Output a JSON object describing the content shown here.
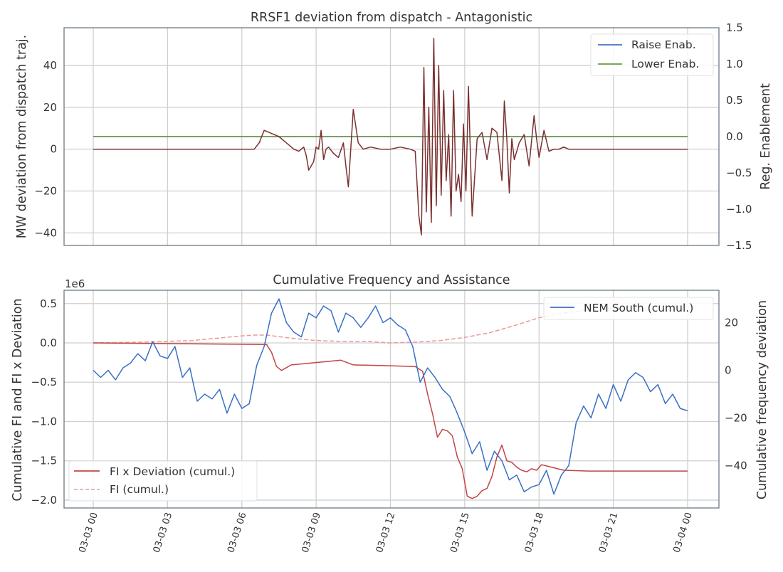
{
  "chart_data": [
    {
      "type": "line",
      "title": "RRSF1 deviation from dispatch - Antagonistic",
      "ylabel": "MW deviation from dispatch traj.",
      "y2label": "Reg. Enablement",
      "ylim": [
        -46,
        58
      ],
      "yticks": [
        40,
        20,
        0,
        -20,
        -40
      ],
      "ytick_labels": [
        "40",
        "20",
        "0",
        "−20",
        "−40"
      ],
      "y2lim": [
        -1.5,
        1.5
      ],
      "y2ticks": [
        1.5,
        1.0,
        0.5,
        0.0,
        -0.5,
        -1.0,
        -1.5
      ],
      "y2tick_labels": [
        "1.5",
        "1.0",
        "0.5",
        "0.0",
        "−0.5",
        "−1.0",
        "−1.5"
      ],
      "x_range_hours": [
        0,
        24
      ],
      "grid": true,
      "legend": {
        "position": "top-right",
        "entries": [
          "Raise Enab.",
          "Lower Enab."
        ]
      },
      "series": [
        {
          "name": "Raise Enab.",
          "axis": "right",
          "color": "#4472c4",
          "x": [
            0,
            24
          ],
          "y": [
            0,
            0
          ]
        },
        {
          "name": "Lower Enab.",
          "axis": "right",
          "color": "#6a9a3e",
          "x": [
            0,
            24
          ],
          "y": [
            0,
            0
          ]
        },
        {
          "name": "MW deviation",
          "axis": "left",
          "color": "#7b3030",
          "x": [
            0,
            6.5,
            6.7,
            6.9,
            7.1,
            7.3,
            7.5,
            7.7,
            7.9,
            8.1,
            8.3,
            8.5,
            8.6,
            8.7,
            8.9,
            9.0,
            9.1,
            9.2,
            9.3,
            9.4,
            9.5,
            9.7,
            9.9,
            10.1,
            10.2,
            10.3,
            10.5,
            10.7,
            10.9,
            11.2,
            11.6,
            12.0,
            12.4,
            12.8,
            13.0,
            13.15,
            13.25,
            13.35,
            13.45,
            13.55,
            13.65,
            13.75,
            13.85,
            13.95,
            14.05,
            14.15,
            14.25,
            14.35,
            14.45,
            14.55,
            14.65,
            14.75,
            14.85,
            14.95,
            15.05,
            15.15,
            15.3,
            15.5,
            15.7,
            15.9,
            16.1,
            16.3,
            16.5,
            16.6,
            16.7,
            16.8,
            16.9,
            17.0,
            17.2,
            17.4,
            17.6,
            17.8,
            17.9,
            18.0,
            18.2,
            18.4,
            18.6,
            18.8,
            19.0,
            19.2,
            20,
            22,
            24
          ],
          "y": [
            0,
            0,
            3,
            9,
            8,
            7,
            6,
            4,
            2,
            0,
            -1,
            1,
            -3,
            -10,
            -6,
            1,
            0,
            9,
            -5,
            0,
            1,
            -2,
            -4,
            3,
            -8,
            -18,
            19,
            3,
            0,
            1,
            0,
            0,
            1,
            0,
            -1,
            -32,
            -41,
            39,
            -30,
            20,
            -35,
            53,
            -27,
            40,
            -22,
            28,
            -15,
            7,
            -32,
            28,
            -20,
            -12,
            -25,
            12,
            -20,
            30,
            -32,
            5,
            8,
            -5,
            10,
            8,
            -15,
            23,
            5,
            -21,
            5,
            -5,
            3,
            7,
            -8,
            16,
            5,
            -4,
            9,
            -1,
            0,
            0,
            1,
            0,
            0,
            0,
            0
          ]
        }
      ]
    },
    {
      "type": "line",
      "title": "Cumulative Frequency and Assistance",
      "ylabel": "Cumulative FI and FI x Deviation",
      "y2label": "Cumulative frequency deviation",
      "offset_text": "1e6",
      "ylim": [
        -2.1,
        0.67
      ],
      "yticks": [
        0.5,
        0.0,
        -0.5,
        -1.0,
        -1.5,
        -2.0
      ],
      "ytick_labels": [
        "0.5",
        "0.0",
        "−0.5",
        "−1.0",
        "−1.5",
        "−2.0"
      ],
      "y2lim": [
        -57.8,
        33.6
      ],
      "y2ticks": [
        20,
        0,
        -20,
        -40
      ],
      "y2tick_labels": [
        "20",
        "0",
        "−20",
        "−40"
      ],
      "x_tick_labels": [
        "03-03 00",
        "03-03 03",
        "03-03 06",
        "03-03 09",
        "03-03 12",
        "03-03 15",
        "03-03 18",
        "03-03 21",
        "03-04 00"
      ],
      "x_ticks_hours": [
        0,
        3,
        6,
        9,
        12,
        15,
        18,
        21,
        24
      ],
      "grid": true,
      "legends": [
        {
          "position": "top-right",
          "entries": [
            "NEM South (cumul.)"
          ]
        },
        {
          "position": "lower-left",
          "entries": [
            "FI x Deviation (cumul.)",
            "FI (cumul.)"
          ]
        }
      ],
      "series": [
        {
          "name": "NEM South (cumul.)",
          "axis": "right",
          "color": "#3a6fc4",
          "x": [
            0,
            0.3,
            0.6,
            0.9,
            1.2,
            1.5,
            1.8,
            2.1,
            2.4,
            2.7,
            3.0,
            3.3,
            3.6,
            3.9,
            4.2,
            4.5,
            4.8,
            5.1,
            5.4,
            5.7,
            6.0,
            6.3,
            6.6,
            6.9,
            7.2,
            7.5,
            7.8,
            8.1,
            8.4,
            8.7,
            9.0,
            9.3,
            9.6,
            9.9,
            10.2,
            10.5,
            10.8,
            11.1,
            11.4,
            11.7,
            12.0,
            12.3,
            12.6,
            12.9,
            13.2,
            13.5,
            13.8,
            14.1,
            14.4,
            14.7,
            15.0,
            15.3,
            15.6,
            15.9,
            16.2,
            16.5,
            16.8,
            17.1,
            17.4,
            17.7,
            18.0,
            18.3,
            18.6,
            18.9,
            19.2,
            19.5,
            19.8,
            20.1,
            20.4,
            20.7,
            21.0,
            21.3,
            21.6,
            21.9,
            22.2,
            22.5,
            22.8,
            23.1,
            23.4,
            23.7,
            24.0
          ],
          "y": [
            0,
            -3,
            0,
            -4,
            1,
            3,
            7,
            4,
            12,
            6,
            5,
            10,
            -3,
            1,
            -13,
            -10,
            -12,
            -8,
            -18,
            -10,
            -16,
            -14,
            2,
            10,
            24,
            30,
            20,
            16,
            14,
            24,
            22,
            27,
            25,
            16,
            24,
            22,
            18,
            22,
            27,
            20,
            22,
            19,
            17,
            10,
            -5,
            1,
            -3,
            -8,
            -11,
            -18,
            -26,
            -35,
            -30,
            -42,
            -34,
            -38,
            -46,
            -44,
            -51,
            -49,
            -48,
            -42,
            -52,
            -44,
            -40,
            -22,
            -15,
            -20,
            -10,
            -16,
            -6,
            -13,
            -4,
            -1,
            -3,
            -9,
            -6,
            -14,
            -10,
            -16,
            -17
          ]
        },
        {
          "name": "FI x Deviation (cumul.)",
          "axis": "left",
          "color": "#c44444",
          "x": [
            0,
            7.0,
            7.2,
            7.4,
            7.6,
            8.0,
            9.0,
            10.0,
            10.5,
            12.0,
            13.0,
            13.3,
            13.5,
            13.7,
            13.9,
            14.1,
            14.3,
            14.5,
            14.7,
            14.9,
            15.1,
            15.3,
            15.5,
            15.7,
            15.9,
            16.1,
            16.3,
            16.5,
            16.7,
            16.9,
            17.1,
            17.3,
            17.5,
            17.7,
            17.9,
            18.1,
            18.5,
            19.0,
            20.0,
            24.0
          ],
          "y": [
            0,
            -0.02,
            -0.12,
            -0.3,
            -0.35,
            -0.28,
            -0.25,
            -0.22,
            -0.28,
            -0.29,
            -0.3,
            -0.36,
            -0.65,
            -0.9,
            -1.2,
            -1.1,
            -1.12,
            -1.18,
            -1.45,
            -1.6,
            -1.95,
            -1.98,
            -1.95,
            -1.88,
            -1.85,
            -1.7,
            -1.45,
            -1.3,
            -1.5,
            -1.52,
            -1.58,
            -1.62,
            -1.64,
            -1.6,
            -1.62,
            -1.55,
            -1.58,
            -1.62,
            -1.63,
            -1.63
          ]
        },
        {
          "name": "FI (cumul.)",
          "axis": "left",
          "color": "#e89a9a",
          "dashed": true,
          "x": [
            0,
            2,
            4,
            5,
            6,
            6.5,
            7,
            8,
            9,
            10,
            11,
            12,
            13,
            14,
            15,
            16,
            17,
            18,
            19,
            20,
            21
          ],
          "y": [
            0,
            0.01,
            0.03,
            0.06,
            0.09,
            0.1,
            0.1,
            0.06,
            0.03,
            0.02,
            0.02,
            0.0,
            0.01,
            0.03,
            0.07,
            0.13,
            0.22,
            0.32,
            0.38,
            0.42,
            0.44
          ]
        }
      ]
    }
  ]
}
